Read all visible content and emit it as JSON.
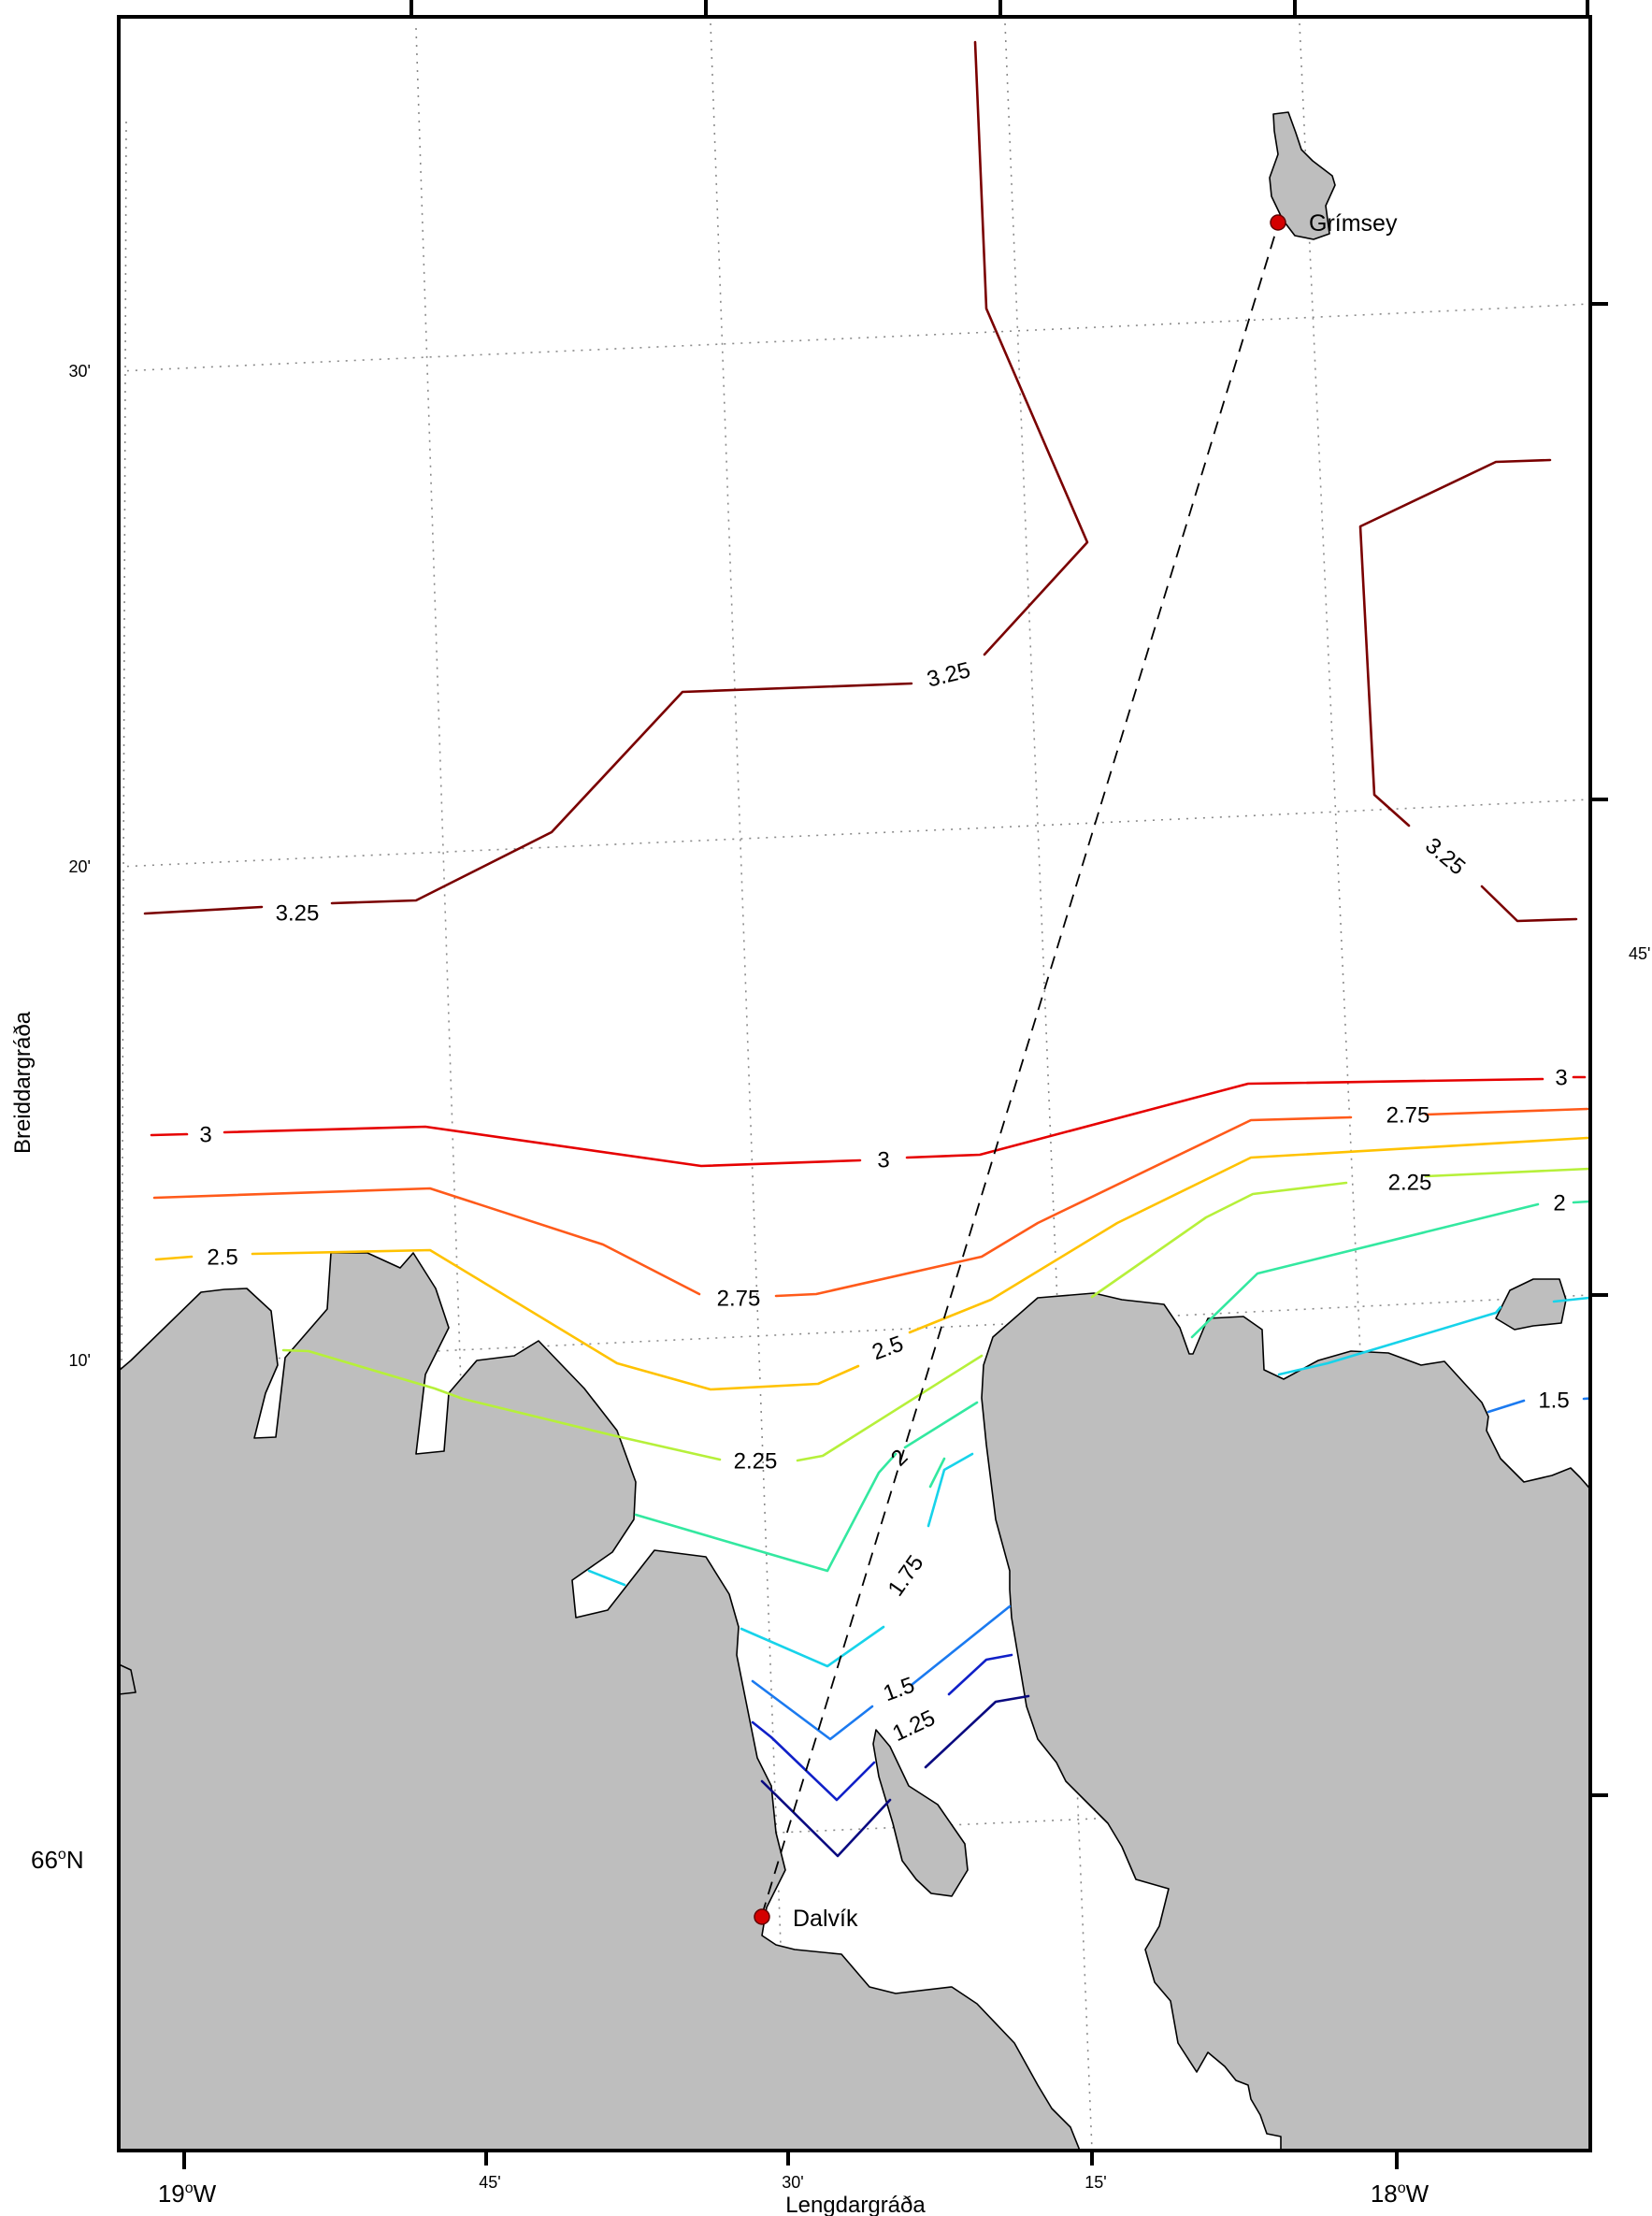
{
  "axes": {
    "x_label": "Lengdargráða",
    "y_label": "Breiddargráða",
    "x_ticks": [
      {
        "deg": "19",
        "sup": "o",
        "hem": "W"
      },
      {
        "deg": "45'",
        "sup": "",
        "hem": ""
      },
      {
        "deg": "30'",
        "sup": "",
        "hem": ""
      },
      {
        "deg": "15'",
        "sup": "",
        "hem": ""
      },
      {
        "deg": "18",
        "sup": "o",
        "hem": "W"
      }
    ],
    "y_ticks": [
      {
        "deg": "66",
        "sup": "o",
        "hem": "N"
      },
      {
        "deg": "10'",
        "sup": "",
        "hem": ""
      },
      {
        "deg": "20'",
        "sup": "",
        "hem": ""
      },
      {
        "deg": "30'",
        "sup": "",
        "hem": ""
      }
    ],
    "right_edge_label": "45'"
  },
  "places": {
    "grimsey": "Grímsey",
    "dalvik": "Dalvík"
  },
  "colors": {
    "land": "#bebebe",
    "station": "#d40000",
    "c325": "#7a0000",
    "c3": "#e60000",
    "c275": "#ff5a1a",
    "c25": "#ffc200",
    "c225": "#b6f03a",
    "c2": "#33e8a0",
    "c175": "#17d3ea",
    "c15": "#1b7af0",
    "c125": "#1020c8",
    "c1": "#0a0a80"
  },
  "contour_labels": {
    "c325": "3.25",
    "c3": "3",
    "c275": "2.75",
    "c25": "2.5",
    "c225": "2.25",
    "c2": "2",
    "c175": "1.75",
    "c15": "1.5",
    "c125": "1.25"
  }
}
